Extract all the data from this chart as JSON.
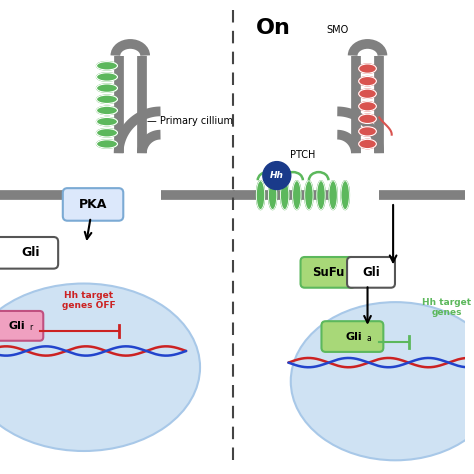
{
  "title_on": "On",
  "primary_cillium_label": "— Primary cillium",
  "pka_label": "PKA",
  "gli_label": "Gli",
  "sufu_label": "SuFu",
  "gli_sufu_label": "Gli",
  "smo_label": "SMO",
  "ptch_label": "PTCH",
  "hh_label": "Hh",
  "gli_r_subscript": "r",
  "gli_a_label": "Gli",
  "gli_a_subscript": "a",
  "hh_target_off_line1": "Hh target",
  "hh_target_off_line2": "genes OFF",
  "hh_target_on_line1": "Hh target",
  "hh_target_on_line2": "genes",
  "bg_color": "#ffffff",
  "cell_color": "#cfe2f3",
  "cell_edge_color": "#a8c8e8",
  "cillium_color": "#808080",
  "green_color": "#5cb85c",
  "red_receptor_color": "#d9534f",
  "pka_box_color": "#dce8fb",
  "pka_border_color": "#7baad4",
  "sufu_box_color": "#a8d878",
  "sufu_border_color": "#5cb85c",
  "gli_box_color": "#ffffff",
  "gli_border_color": "#555555",
  "gli_a_box_color": "#a8d878",
  "gli_a_border_color": "#5cb85c",
  "gli_r_box_color": "#f0a0c0",
  "gli_r_border_color": "#c05080",
  "hh_circle_color": "#1a3a8a",
  "hh_text_color": "#ffffff",
  "dna_red": "#cc2222",
  "dna_blue": "#2244cc",
  "arrow_color": "#111111",
  "off_text_color": "#cc2222",
  "on_text_color": "#5cb85c",
  "divider_color": "#444444"
}
